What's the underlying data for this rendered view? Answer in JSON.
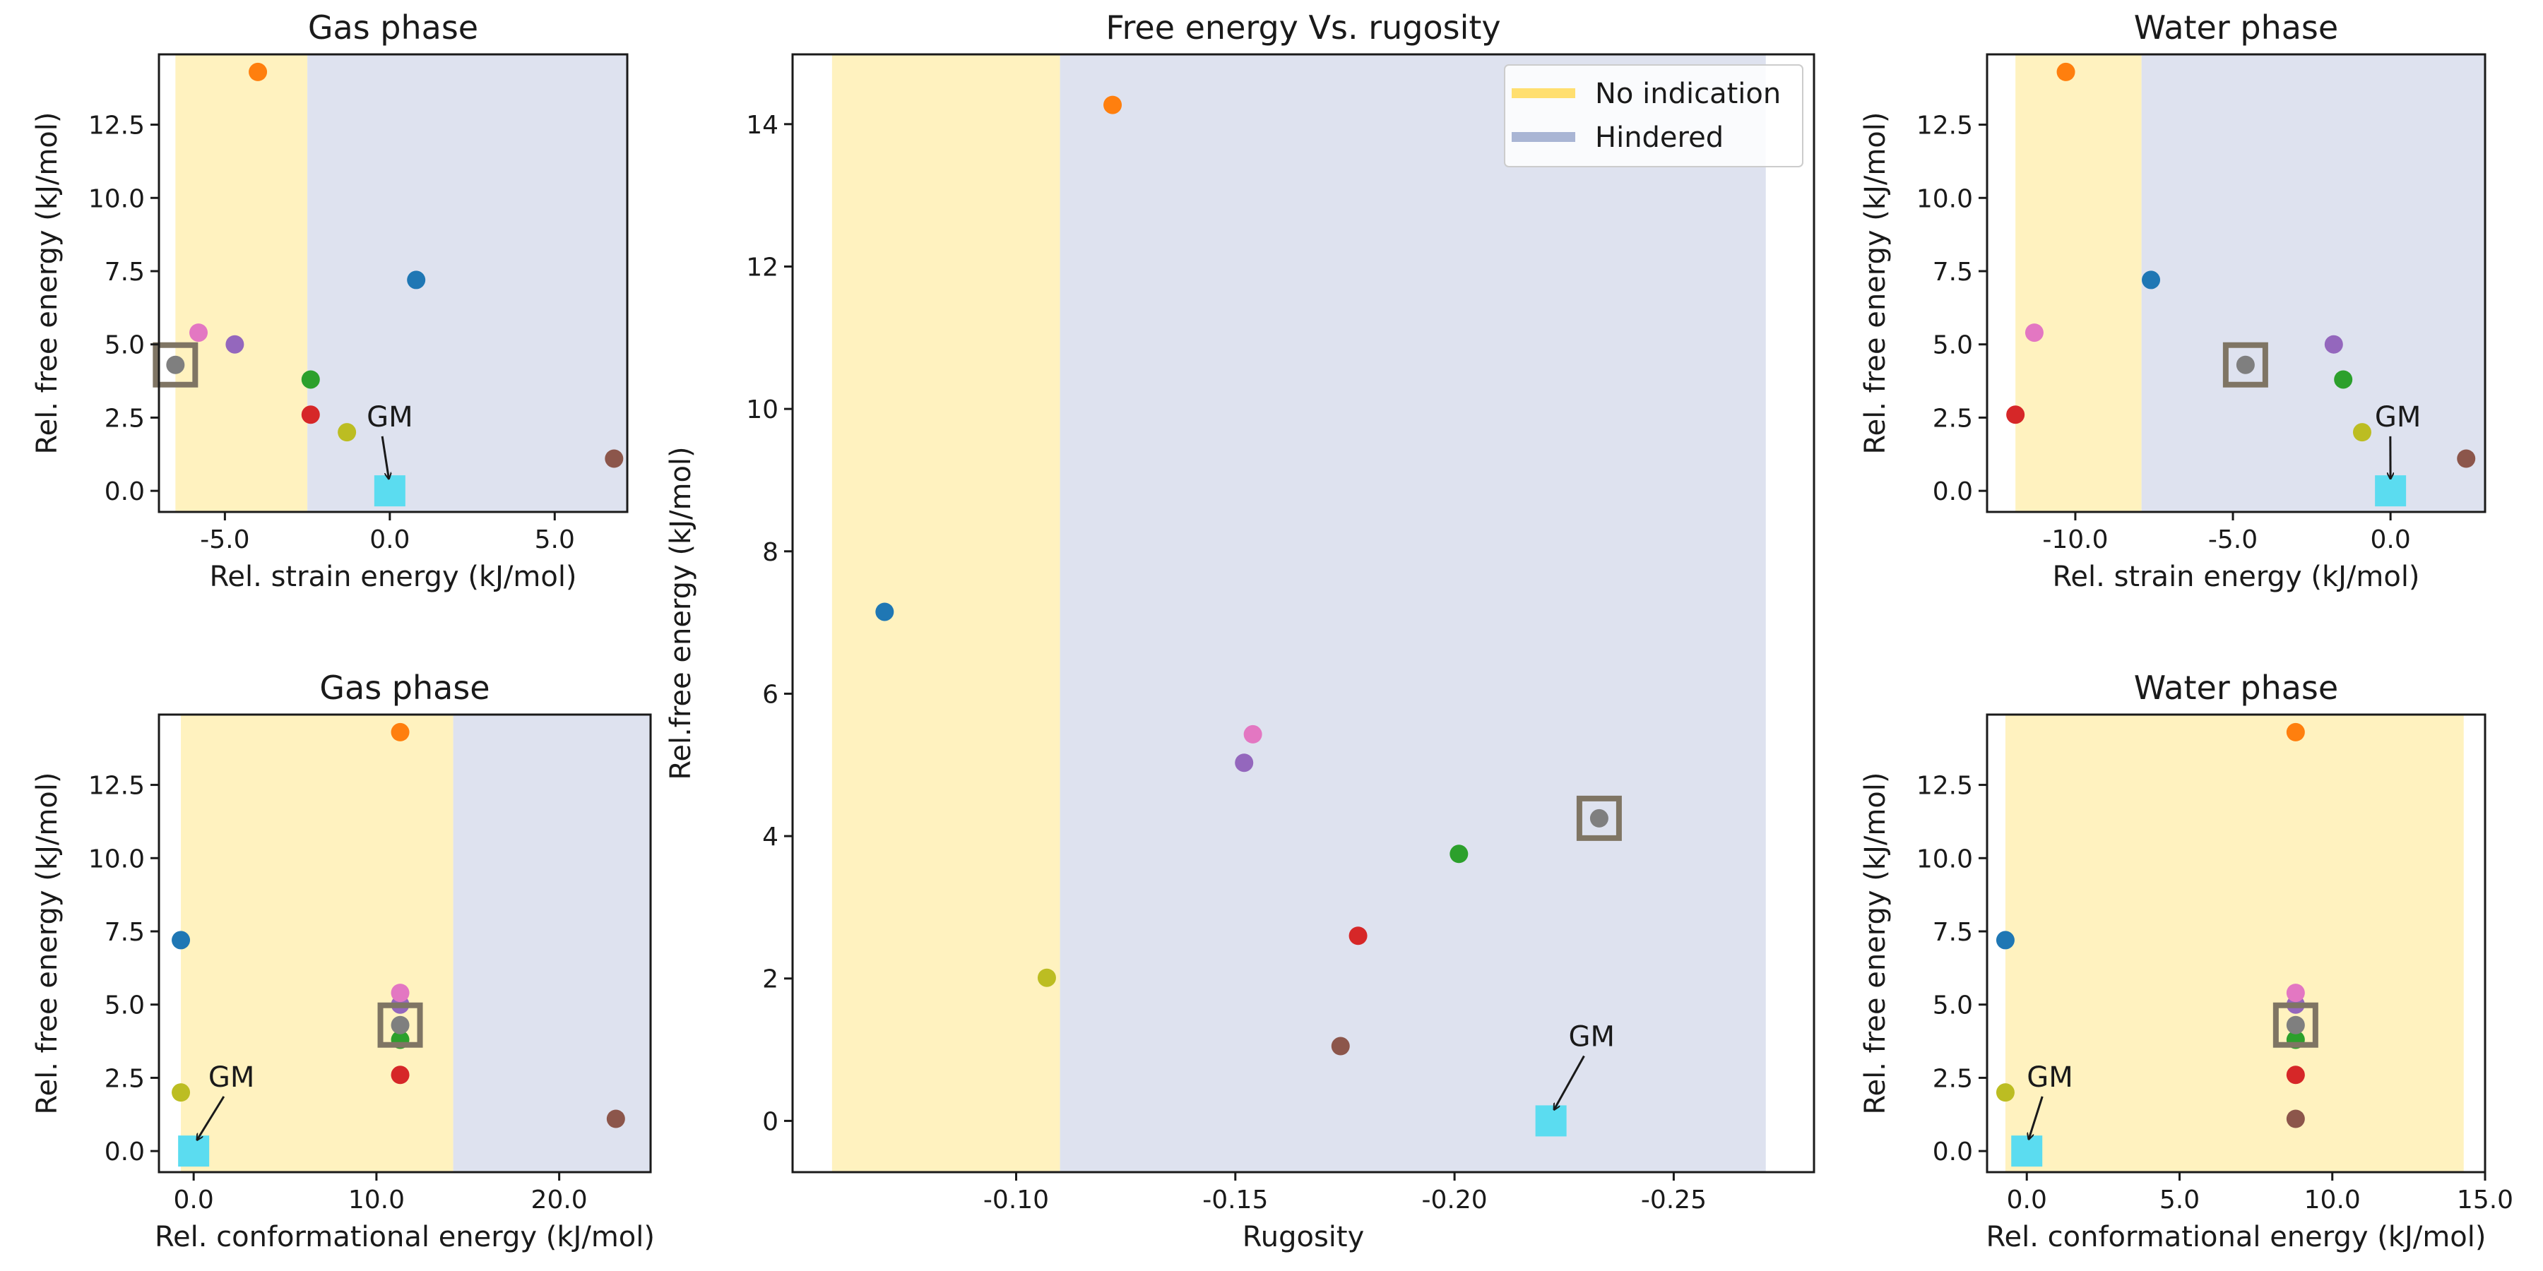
{
  "colors": {
    "no_indication_band": "#fff2bf",
    "hindered_band": "#dee2ef",
    "legend_no_indication": "#ffdf70",
    "legend_hindered": "#a9b5d4",
    "gm_marker": "#5bdcf0",
    "highlight_box": "#7f7564",
    "annotation": "#1a1a1a"
  },
  "legend": {
    "placement": "top-right of center panel",
    "items": [
      {
        "label": "No indication",
        "color": "#ffdf70"
      },
      {
        "label": "Hindered",
        "color": "#a9b5d4"
      }
    ]
  },
  "chart_data": [
    {
      "id": "gas-strain",
      "type": "scatter",
      "title": "Gas phase",
      "xlabel": "Rel. strain energy (kJ/mol)",
      "ylabel": "Rel. free energy (kJ/mol)",
      "xlim": [
        -7.0,
        7.2
      ],
      "ylim": [
        -0.72,
        14.9
      ],
      "xticks": [
        {
          "v": -5,
          "label": "-5.0"
        },
        {
          "v": 0,
          "label": "0.0"
        },
        {
          "v": 5,
          "label": "5.0"
        }
      ],
      "yticks": [
        {
          "v": 0,
          "label": "0.0"
        },
        {
          "v": 2.5,
          "label": "2.5"
        },
        {
          "v": 5,
          "label": "5.0"
        },
        {
          "v": 7.5,
          "label": "7.5"
        },
        {
          "v": 10,
          "label": "10.0"
        },
        {
          "v": 12.5,
          "label": "12.5"
        }
      ],
      "regions": [
        {
          "from": -6.5,
          "to": -2.5,
          "kind": "no_indication"
        },
        {
          "from": -2.5,
          "to": 7.2,
          "kind": "hindered"
        }
      ],
      "points": [
        {
          "x": 0.8,
          "y": 7.2,
          "color": "#1f77b4"
        },
        {
          "x": -4.0,
          "y": 14.3,
          "color": "#ff7f0e"
        },
        {
          "x": -2.4,
          "y": 3.8,
          "color": "#2ca02c"
        },
        {
          "x": -2.4,
          "y": 2.6,
          "color": "#d62728"
        },
        {
          "x": -4.7,
          "y": 5.0,
          "color": "#9467bd"
        },
        {
          "x": 6.8,
          "y": 1.1,
          "color": "#8c564b"
        },
        {
          "x": -5.8,
          "y": 5.4,
          "color": "#e377c2"
        },
        {
          "x": -6.5,
          "y": 4.3,
          "color": "#7f7f7f",
          "highlight": true
        },
        {
          "x": -1.3,
          "y": 2.0,
          "color": "#bcbd22"
        }
      ],
      "gm": {
        "x": 0.0,
        "y": 0.0,
        "label": "GM",
        "text_x": -0.7,
        "text_y": 2.2
      }
    },
    {
      "id": "gas-conformational",
      "type": "scatter",
      "title": "Gas phase",
      "xlabel": "Rel. conformational energy (kJ/mol)",
      "ylabel": "Rel. free energy (kJ/mol)",
      "xlim": [
        -1.9,
        25.0
      ],
      "ylim": [
        -0.72,
        14.9
      ],
      "xticks": [
        {
          "v": 0,
          "label": "0.0"
        },
        {
          "v": 10,
          "label": "10.0"
        },
        {
          "v": 20,
          "label": "20.0"
        }
      ],
      "yticks": [
        {
          "v": 0,
          "label": "0.0"
        },
        {
          "v": 2.5,
          "label": "2.5"
        },
        {
          "v": 5,
          "label": "5.0"
        },
        {
          "v": 7.5,
          "label": "7.5"
        },
        {
          "v": 10,
          "label": "10.0"
        },
        {
          "v": 12.5,
          "label": "12.5"
        }
      ],
      "regions": [
        {
          "from": -0.7,
          "to": 14.2,
          "kind": "no_indication"
        },
        {
          "from": 14.2,
          "to": 25.0,
          "kind": "hindered"
        }
      ],
      "points": [
        {
          "x": -0.7,
          "y": 7.2,
          "color": "#1f77b4"
        },
        {
          "x": 11.3,
          "y": 14.3,
          "color": "#ff7f0e"
        },
        {
          "x": 11.3,
          "y": 3.8,
          "color": "#2ca02c"
        },
        {
          "x": 11.3,
          "y": 2.6,
          "color": "#d62728"
        },
        {
          "x": 11.3,
          "y": 5.0,
          "color": "#9467bd"
        },
        {
          "x": 23.1,
          "y": 1.1,
          "color": "#8c564b"
        },
        {
          "x": 11.3,
          "y": 5.4,
          "color": "#e377c2"
        },
        {
          "x": 11.3,
          "y": 4.3,
          "color": "#7f7f7f",
          "highlight": true
        },
        {
          "x": -0.7,
          "y": 2.0,
          "color": "#bcbd22"
        }
      ],
      "gm": {
        "x": 0.0,
        "y": 0.0,
        "label": "GM",
        "text_x": 0.8,
        "text_y": 2.2
      }
    },
    {
      "id": "rugosity",
      "type": "scatter",
      "title": "Free energy Vs. rugosity",
      "xlabel": "Rugosity",
      "ylabel": "Rel.free energy (kJ/mol)",
      "x_reversed": true,
      "xlim": [
        -0.049,
        -0.282
      ],
      "ylim": [
        -0.72,
        14.98
      ],
      "xticks": [
        {
          "v": -0.1,
          "label": "-0.10"
        },
        {
          "v": -0.15,
          "label": "-0.15"
        },
        {
          "v": -0.2,
          "label": "-0.20"
        },
        {
          "v": -0.25,
          "label": "-0.25"
        }
      ],
      "yticks": [
        {
          "v": 0,
          "label": "0"
        },
        {
          "v": 2,
          "label": "2"
        },
        {
          "v": 4,
          "label": "4"
        },
        {
          "v": 6,
          "label": "6"
        },
        {
          "v": 8,
          "label": "8"
        },
        {
          "v": 10,
          "label": "10"
        },
        {
          "v": 12,
          "label": "12"
        },
        {
          "v": 14,
          "label": "14"
        }
      ],
      "regions": [
        {
          "from": -0.058,
          "to": -0.11,
          "kind": "no_indication"
        },
        {
          "from": -0.11,
          "to": -0.271,
          "kind": "hindered"
        }
      ],
      "points": [
        {
          "x": -0.07,
          "y": 7.15,
          "color": "#1f77b4"
        },
        {
          "x": -0.122,
          "y": 14.27,
          "color": "#ff7f0e"
        },
        {
          "x": -0.201,
          "y": 3.75,
          "color": "#2ca02c"
        },
        {
          "x": -0.178,
          "y": 2.6,
          "color": "#d62728"
        },
        {
          "x": -0.152,
          "y": 5.03,
          "color": "#9467bd"
        },
        {
          "x": -0.174,
          "y": 1.05,
          "color": "#8c564b"
        },
        {
          "x": -0.154,
          "y": 5.43,
          "color": "#e377c2"
        },
        {
          "x": -0.233,
          "y": 4.25,
          "color": "#7f7f7f",
          "highlight": true
        },
        {
          "x": -0.107,
          "y": 2.01,
          "color": "#bcbd22"
        }
      ],
      "gm": {
        "x": -0.222,
        "y": 0.0,
        "label": "GM",
        "text_x": -0.226,
        "text_y": 1.05
      }
    },
    {
      "id": "water-strain",
      "type": "scatter",
      "title": "Water phase",
      "xlabel": "Rel. strain energy (kJ/mol)",
      "ylabel": "Rel. free energy (kJ/mol)",
      "xlim": [
        -12.8,
        3.0
      ],
      "ylim": [
        -0.72,
        14.9
      ],
      "xticks": [
        {
          "v": -10,
          "label": "-10.0"
        },
        {
          "v": -5,
          "label": "-5.0"
        },
        {
          "v": 0,
          "label": "0.0"
        }
      ],
      "yticks": [
        {
          "v": 0,
          "label": "0.0"
        },
        {
          "v": 2.5,
          "label": "2.5"
        },
        {
          "v": 5,
          "label": "5.0"
        },
        {
          "v": 7.5,
          "label": "7.5"
        },
        {
          "v": 10,
          "label": "10.0"
        },
        {
          "v": 12.5,
          "label": "12.5"
        }
      ],
      "regions": [
        {
          "from": -11.9,
          "to": -7.9,
          "kind": "no_indication"
        },
        {
          "from": -7.9,
          "to": 3.0,
          "kind": "hindered"
        }
      ],
      "points": [
        {
          "x": -7.6,
          "y": 7.2,
          "color": "#1f77b4"
        },
        {
          "x": -10.3,
          "y": 14.3,
          "color": "#ff7f0e"
        },
        {
          "x": -1.5,
          "y": 3.8,
          "color": "#2ca02c"
        },
        {
          "x": -11.9,
          "y": 2.6,
          "color": "#d62728"
        },
        {
          "x": -1.8,
          "y": 5.0,
          "color": "#9467bd"
        },
        {
          "x": 2.4,
          "y": 1.1,
          "color": "#8c564b"
        },
        {
          "x": -11.3,
          "y": 5.4,
          "color": "#e377c2"
        },
        {
          "x": -4.6,
          "y": 4.3,
          "color": "#7f7f7f",
          "highlight": true
        },
        {
          "x": -0.9,
          "y": 2.0,
          "color": "#bcbd22"
        }
      ],
      "gm": {
        "x": 0.0,
        "y": 0.0,
        "label": "GM",
        "text_x": -0.5,
        "text_y": 2.2
      }
    },
    {
      "id": "water-conformational",
      "type": "scatter",
      "title": "Water phase",
      "xlabel": "Rel. conformational energy (kJ/mol)",
      "ylabel": "Rel. free energy (kJ/mol)",
      "xlim": [
        -1.3,
        15.0
      ],
      "ylim": [
        -0.72,
        14.9
      ],
      "xticks": [
        {
          "v": 0,
          "label": "0.0"
        },
        {
          "v": 5,
          "label": "5.0"
        },
        {
          "v": 10,
          "label": "10.0"
        },
        {
          "v": 15,
          "label": "15.0"
        }
      ],
      "yticks": [
        {
          "v": 0,
          "label": "0.0"
        },
        {
          "v": 2.5,
          "label": "2.5"
        },
        {
          "v": 5,
          "label": "5.0"
        },
        {
          "v": 7.5,
          "label": "7.5"
        },
        {
          "v": 10,
          "label": "10.0"
        },
        {
          "v": 12.5,
          "label": "12.5"
        }
      ],
      "regions": [
        {
          "from": -0.7,
          "to": 14.3,
          "kind": "no_indication"
        }
      ],
      "points": [
        {
          "x": -0.7,
          "y": 7.2,
          "color": "#1f77b4"
        },
        {
          "x": 8.8,
          "y": 14.3,
          "color": "#ff7f0e"
        },
        {
          "x": 8.8,
          "y": 3.8,
          "color": "#2ca02c"
        },
        {
          "x": 8.8,
          "y": 2.6,
          "color": "#d62728"
        },
        {
          "x": 8.8,
          "y": 5.0,
          "color": "#9467bd"
        },
        {
          "x": 8.8,
          "y": 1.1,
          "color": "#8c564b"
        },
        {
          "x": 8.8,
          "y": 5.4,
          "color": "#e377c2"
        },
        {
          "x": 8.8,
          "y": 4.3,
          "color": "#7f7f7f",
          "highlight": true
        },
        {
          "x": -0.7,
          "y": 2.0,
          "color": "#bcbd22"
        }
      ],
      "gm": {
        "x": 0.0,
        "y": 0.0,
        "label": "GM",
        "text_x": 0.0,
        "text_y": 2.2
      }
    }
  ]
}
